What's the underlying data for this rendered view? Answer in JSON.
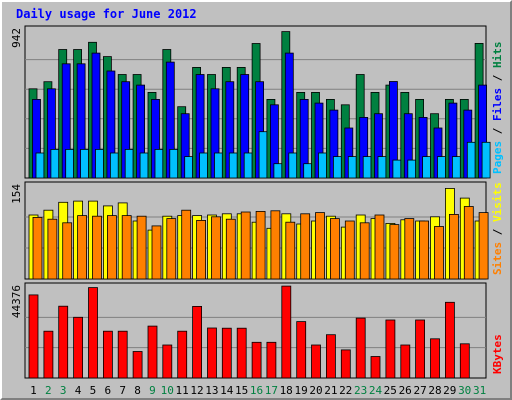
{
  "chart_data": {
    "type": "bar",
    "title": "Daily usage for June 2012",
    "categories": [
      "1",
      "2",
      "3",
      "4",
      "5",
      "6",
      "7",
      "8",
      "9",
      "10",
      "11",
      "12",
      "13",
      "14",
      "15",
      "16",
      "17",
      "18",
      "19",
      "20",
      "21",
      "22",
      "23",
      "24",
      "25",
      "26",
      "27",
      "28",
      "29",
      "30",
      "31"
    ],
    "weekend_days": [
      "2",
      "3",
      "9",
      "10",
      "16",
      "17",
      "23",
      "24",
      "30",
      "31"
    ],
    "panels": [
      {
        "id": "pages-files-hits",
        "max_label": "942",
        "ylim": [
          0,
          942
        ],
        "series": [
          {
            "name": "Hits",
            "color": "#008040",
            "values": [
              568,
              613,
              818,
              818,
              864,
              773,
              659,
              659,
              545,
              818,
              454,
              704,
              659,
              704,
              704,
              856,
              500,
              932,
              545,
              545,
              500,
              466,
              659,
              545,
              591,
              545,
              500,
              409,
              500,
              500,
              857
            ]
          },
          {
            "name": "Files",
            "color": "#0000ff",
            "values": [
              500,
              568,
              727,
              727,
              795,
              681,
              613,
              591,
              500,
              738,
              409,
              659,
              568,
              613,
              659,
              613,
              466,
              795,
              500,
              477,
              432,
              318,
              386,
              409,
              614,
              409,
              386,
              318,
              477,
              432,
              591
            ]
          },
          {
            "name": "Pages",
            "color": "#00c0ff",
            "values": [
              159,
              182,
              182,
              182,
              182,
              159,
              182,
              159,
              182,
              182,
              136,
              159,
              159,
              159,
              159,
              295,
              91,
              159,
              91,
              159,
              136,
              136,
              136,
              136,
              114,
              114,
              136,
              136,
              136,
              227,
              227
            ]
          }
        ]
      },
      {
        "id": "visits-sites",
        "max_label": "154",
        "ylim": [
          0,
          154
        ],
        "series": [
          {
            "name": "Visits",
            "color": "#ffff00",
            "values": [
              106,
              114,
              127,
              129,
              129,
              121,
              126,
              96,
              81,
              104,
              105,
              105,
              106,
              108,
              108,
              94,
              84,
              108,
              91,
              96,
              104,
              86,
              106,
              100,
              92,
              98,
              96,
              103,
              150,
              134,
              96
            ]
          },
          {
            "name": "Sites",
            "color": "#ff8000",
            "values": [
              102,
              99,
              93,
              105,
              104,
              105,
              105,
              104,
              88,
              100,
              114,
              97,
              103,
              99,
              111,
              112,
              113,
              94,
              108,
              110,
              100,
              96,
              93,
              106,
              90,
              100,
              96,
              87,
              107,
              120,
              110
            ]
          }
        ]
      },
      {
        "id": "kbytes",
        "max_label": "44376",
        "ylim": [
          0,
          44376
        ],
        "series": [
          {
            "name": "KBytes",
            "color": "#ff0000",
            "values": [
              40500,
              22800,
              35000,
              29600,
              44100,
              22800,
              22800,
              12900,
              25300,
              16100,
              22800,
              34900,
              24400,
              24300,
              24300,
              17400,
              17400,
              44800,
              27500,
              16100,
              21100,
              13700,
              29200,
              10500,
              28300,
              16100,
              28300,
              19100,
              36900,
              16700,
              0
            ]
          }
        ]
      }
    ]
  }
}
